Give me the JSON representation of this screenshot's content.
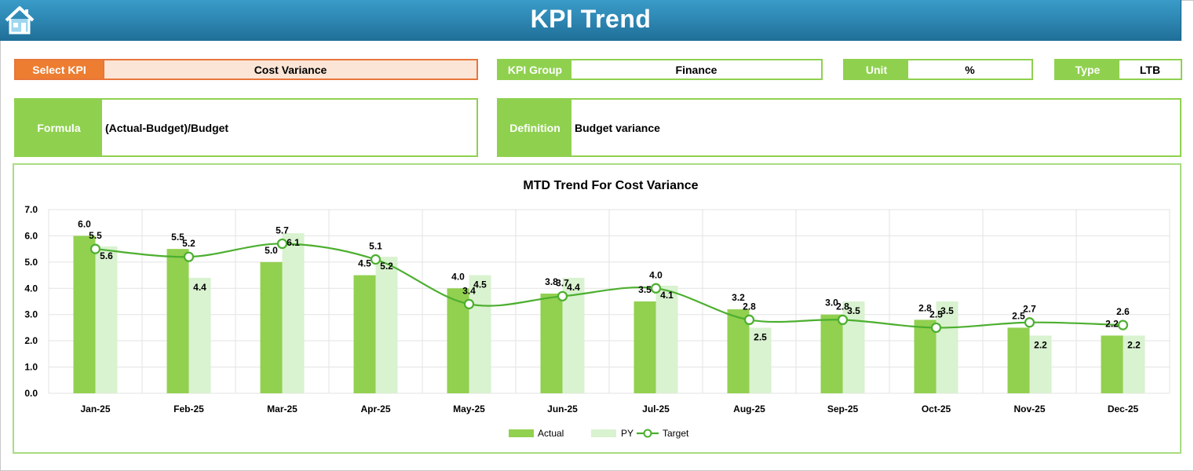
{
  "header": {
    "title": "KPI Trend",
    "home_icon": "home-icon"
  },
  "selectors": {
    "kpi_label": "Select KPI",
    "kpi_value": "Cost Variance",
    "group_label": "KPI Group",
    "group_value": "Finance",
    "unit_label": "Unit",
    "unit_value": "%",
    "type_label": "Type",
    "type_value": "LTB"
  },
  "details": {
    "formula_label": "Formula",
    "formula_value": "(Actual-Budget)/Budget",
    "definition_label": "Definition",
    "definition_value": "Budget variance"
  },
  "colors": {
    "actual": "#92d050",
    "py": "#d9f2d0",
    "target": "#4caf2f",
    "select_kpi": "#ed7d31",
    "label_bg": "#8fd14f"
  },
  "chart_data": {
    "type": "bar",
    "title": "MTD Trend For Cost Variance",
    "categories": [
      "Jan-25",
      "Feb-25",
      "Mar-25",
      "Apr-25",
      "May-25",
      "Jun-25",
      "Jul-25",
      "Aug-25",
      "Sep-25",
      "Oct-25",
      "Nov-25",
      "Dec-25"
    ],
    "series": [
      {
        "name": "Actual",
        "type": "bar",
        "values": [
          6.0,
          5.5,
          5.0,
          4.5,
          4.0,
          3.8,
          3.5,
          3.2,
          3.0,
          2.8,
          2.5,
          2.2
        ]
      },
      {
        "name": "PY",
        "type": "bar",
        "values": [
          5.6,
          4.4,
          6.1,
          5.2,
          4.5,
          4.4,
          4.1,
          2.5,
          3.5,
          3.5,
          2.2,
          2.2
        ]
      },
      {
        "name": "Target",
        "type": "line",
        "values": [
          5.5,
          5.2,
          5.7,
          5.1,
          3.4,
          3.7,
          4.0,
          2.8,
          2.8,
          2.5,
          2.7,
          2.6
        ]
      }
    ],
    "ylim": [
      0,
      7
    ],
    "yticks": [
      "0.0",
      "1.0",
      "2.0",
      "3.0",
      "4.0",
      "5.0",
      "6.0",
      "7.0"
    ],
    "legend": [
      "Actual",
      "PY",
      "Target"
    ],
    "legend_position": "bottom"
  }
}
